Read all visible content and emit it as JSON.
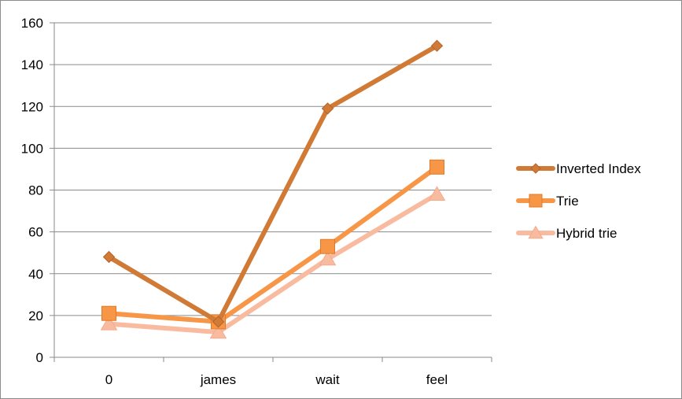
{
  "chart_data": {
    "type": "line",
    "categories": [
      "0",
      "james",
      "wait",
      "feel"
    ],
    "ylim": [
      0,
      160
    ],
    "yticks": [
      0,
      20,
      40,
      60,
      80,
      100,
      120,
      140,
      160
    ],
    "grid": true,
    "legend_position": "right",
    "series": [
      {
        "name": "Inverted Index",
        "values": [
          48,
          17,
          119,
          149
        ],
        "color": "#d07a36",
        "marker": "diamond"
      },
      {
        "name": "Trie",
        "values": [
          21,
          17,
          53,
          91
        ],
        "color": "#f79646",
        "marker": "square"
      },
      {
        "name": "Hybrid trie",
        "values": [
          16,
          12,
          47,
          78
        ],
        "color": "#f9bba0",
        "marker": "triangle"
      }
    ]
  }
}
